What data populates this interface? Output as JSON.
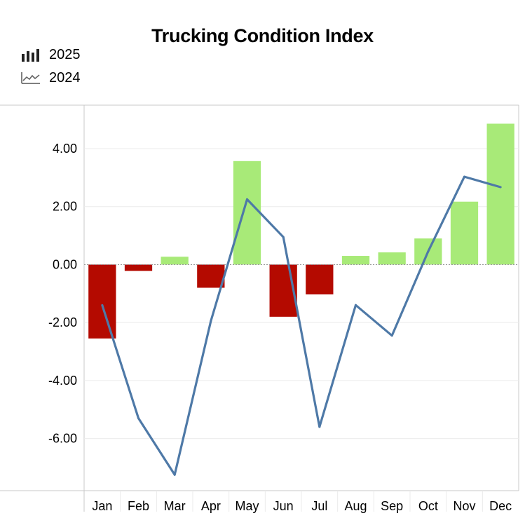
{
  "chart_data": {
    "type": "bar",
    "title": "Trucking Condition Index",
    "categories": [
      "Jan",
      "Feb",
      "Mar",
      "Apr",
      "May",
      "Jun",
      "Jul",
      "Aug",
      "Sep",
      "Oct",
      "Nov",
      "Dec"
    ],
    "series": [
      {
        "name": "2025",
        "type": "bar",
        "values": [
          -2.55,
          -0.22,
          0.27,
          -0.8,
          3.57,
          -1.8,
          -1.03,
          0.3,
          0.42,
          0.9,
          2.17,
          4.86
        ]
      },
      {
        "name": "2024",
        "type": "line",
        "values": [
          -1.4,
          -5.3,
          -7.25,
          -1.95,
          2.25,
          0.95,
          -5.6,
          -1.4,
          -2.45,
          0.45,
          3.03,
          2.67
        ]
      }
    ],
    "yticks": [
      "4.00",
      "2.00",
      "0.00",
      "-2.00",
      "-4.00",
      "-6.00"
    ],
    "ylim": [
      -7.8,
      5.5
    ],
    "colors": {
      "positive": "#a8ea78",
      "negative": "#b40a00",
      "line": "#4e79a7",
      "grid": "#ebebeb",
      "axis": "#c8c8c8",
      "zero": "#9a9a9a"
    }
  }
}
